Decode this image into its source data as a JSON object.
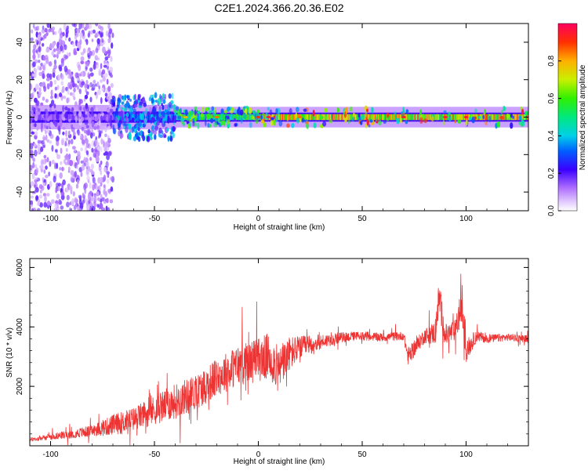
{
  "title": "C2E1.2024.366.20.36.E02",
  "colorbar": {
    "label": "Normalized spectral amplitude",
    "ticks": [
      "0.0",
      "0.2",
      "0.4",
      "0.6",
      "0.8"
    ],
    "tick_values": [
      0.0,
      0.2,
      0.4,
      0.6,
      0.8
    ],
    "range": [
      0,
      1
    ]
  },
  "chart_data": [
    {
      "type": "heatmap",
      "xlabel": "Height of straight line (km)",
      "ylabel": "Frequency (Hz)",
      "xlim": [
        -110,
        130
      ],
      "ylim": [
        -50,
        50
      ],
      "xticks": [
        "-100",
        "-50",
        "0",
        "50",
        "100"
      ],
      "xtick_values": [
        -100,
        -50,
        0,
        50,
        100
      ],
      "yticks": [
        "-40",
        "-20",
        "0",
        "20",
        "40"
      ],
      "ytick_values": [
        -40,
        -20,
        0,
        20,
        40
      ],
      "description": "Spectrogram concentrated near 0 Hz; broadband scatter below -70 km, narrow band (about +/-4 Hz) above -40 km with peak amplitudes near 1.0 between 0 and 110 km",
      "bands": [
        {
          "x": [
            -110,
            -70
          ],
          "halfwidth_hz": 50,
          "amplitude": 0.15
        },
        {
          "x": [
            -70,
            -40
          ],
          "halfwidth_hz": 10,
          "amplitude": 0.35
        },
        {
          "x": [
            -40,
            0
          ],
          "halfwidth_hz": 4,
          "amplitude": 0.55
        },
        {
          "x": [
            0,
            130
          ],
          "halfwidth_hz": 4,
          "amplitude": 0.75
        }
      ],
      "peaks": [
        {
          "x": -35,
          "amplitude": 0.8
        },
        {
          "x": -20,
          "amplitude": 0.85
        },
        {
          "x": 0,
          "amplitude": 0.9
        },
        {
          "x": 5,
          "amplitude": 0.95
        },
        {
          "x": 20,
          "amplitude": 0.85
        },
        {
          "x": 70,
          "amplitude": 0.95
        },
        {
          "x": 90,
          "amplitude": 0.95
        },
        {
          "x": 100,
          "amplitude": 0.95
        }
      ]
    },
    {
      "type": "line",
      "xlabel": "Height of straight line (km)",
      "ylabel": "SNR (10 * v/v)",
      "xlim": [
        -110,
        130
      ],
      "ylim": [
        0,
        6300
      ],
      "xticks": [
        "-100",
        "-50",
        "0",
        "50",
        "100"
      ],
      "xtick_values": [
        -100,
        -50,
        0,
        50,
        100
      ],
      "yticks": [
        "2000",
        "4000",
        "6000"
      ],
      "ytick_values": [
        2000,
        4000,
        6000
      ],
      "color": "#ee3333",
      "series": [
        {
          "x": [
            -110,
            -100,
            -90,
            -80,
            -70,
            -60,
            -50,
            -40,
            -30,
            -20,
            -10,
            0,
            5,
            10,
            15,
            20,
            30,
            40,
            50,
            60,
            70,
            72,
            80,
            85,
            87,
            90,
            95,
            98,
            100,
            105,
            110,
            120,
            130
          ],
          "values": [
            200,
            300,
            400,
            500,
            700,
            900,
            1200,
            1500,
            1800,
            2300,
            2700,
            2900,
            3000,
            2600,
            3100,
            3300,
            3500,
            3650,
            3700,
            3650,
            3700,
            3000,
            3700,
            3800,
            5000,
            3700,
            3900,
            4800,
            3200,
            3700,
            3600,
            3650,
            3600
          ],
          "noise": [
            150,
            200,
            300,
            400,
            700,
            800,
            1000,
            1200,
            1200,
            1300,
            1400,
            1500,
            1600,
            1400,
            1200,
            800,
            500,
            350,
            300,
            300,
            300,
            600,
            500,
            800,
            1200,
            800,
            700,
            1500,
            800,
            400,
            300,
            250,
            250
          ]
        }
      ]
    }
  ]
}
